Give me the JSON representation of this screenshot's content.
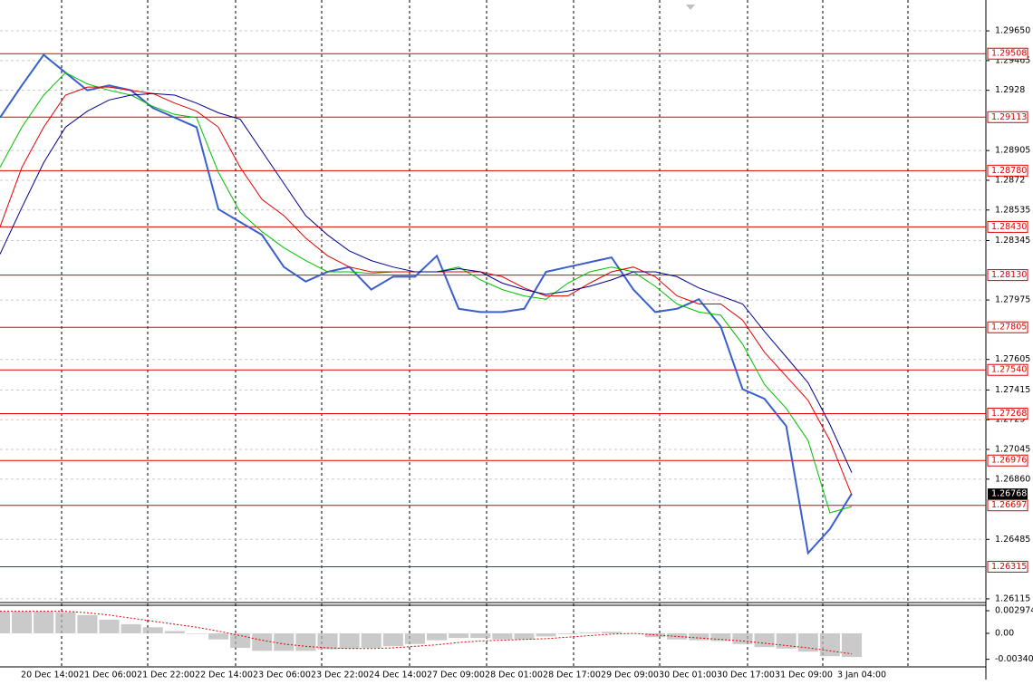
{
  "chart_data": [
    {
      "type": "line",
      "ylim": [
        1.26092,
        1.29842
      ],
      "yticks": [
        {
          "value": 1.2965,
          "label": "1.29650"
        },
        1.29465,
        1.2928,
        1.28905,
        1.2872,
        1.28535,
        1.28345,
        1.27975,
        1.27605,
        1.27415,
        1.2723,
        1.27045,
        {
          "value": 1.2686,
          "label": "1.26860"
        },
        1.26485,
        1.26115
      ],
      "grid": true,
      "time_labels": [
        "20 Dec 14:00",
        "21 Dec 06:00",
        "21 Dec 22:00",
        "22 Dec 14:00",
        "23 Dec 06:00",
        "23 Dec 22:00",
        "24 Dec 14:00",
        "27 Dec 09:00",
        "28 Dec 01:00",
        "28 Dec 17:00",
        "29 Dec 09:00",
        "30 Dec 01:00",
        "30 Dec 17:00",
        "31 Dec 09:00",
        "3 Jan 04:00"
      ],
      "levels": [
        {
          "value": 1.29508,
          "label": "1.29508"
        },
        {
          "value": 1.29113,
          "label": "1.29113"
        },
        {
          "value": 1.2878,
          "label": "1.28780"
        },
        {
          "value": 1.2843,
          "label": "1.28430"
        },
        {
          "value": 1.2813,
          "label": "1.28130"
        },
        {
          "value": 1.27805,
          "label": "1.27805"
        },
        {
          "value": 1.2754,
          "label": "1.27540"
        },
        {
          "value": 1.27268,
          "label": "1.27268"
        },
        {
          "value": 1.26976,
          "label": "1.26976"
        },
        {
          "value": 1.26697,
          "label": "1.26697"
        },
        {
          "value": 1.26315,
          "label": "1.26315"
        }
      ],
      "level_color": "#e00000",
      "last_price": 1.26768,
      "series": [
        {
          "color": "#3a5fcd",
          "values": [
            1.2911,
            1.2931,
            1.295,
            1.2939,
            1.2928,
            1.2931,
            1.2928,
            1.2917,
            1.2911,
            1.2905,
            1.2854,
            1.2846,
            1.2838,
            1.2818,
            1.2809,
            1.2815,
            1.2818,
            1.2804,
            1.2812,
            1.2812,
            1.2825,
            1.2792,
            1.279,
            1.279,
            1.2792,
            1.2815,
            1.2818,
            1.2821,
            1.2824,
            1.2804,
            1.279,
            1.2792,
            1.2798,
            1.2781,
            1.2742,
            1.2736,
            1.2719,
            1.264,
            1.2655,
            1.2677
          ]
        },
        {
          "color": "#00c000",
          "values": [
            1.288,
            1.2905,
            1.2925,
            1.2939,
            1.2932,
            1.2928,
            1.2925,
            1.2918,
            1.2913,
            1.2911,
            1.2877,
            1.2852,
            1.284,
            1.283,
            1.2822,
            1.2815,
            1.2815,
            1.2814,
            1.2815,
            1.2815,
            1.2815,
            1.2818,
            1.281,
            1.2804,
            1.28,
            1.2798,
            1.2808,
            1.2815,
            1.2818,
            1.2815,
            1.2806,
            1.2795,
            1.279,
            1.2788,
            1.277,
            1.2745,
            1.273,
            1.271,
            1.2665,
            1.2669
          ]
        },
        {
          "color": "#e00000",
          "values": [
            1.2843,
            1.288,
            1.2905,
            1.2925,
            1.293,
            1.293,
            1.2928,
            1.2926,
            1.292,
            1.2915,
            1.2905,
            1.288,
            1.286,
            1.285,
            1.2836,
            1.2825,
            1.2818,
            1.2815,
            1.2815,
            1.2815,
            1.2815,
            1.2815,
            1.2815,
            1.2812,
            1.2805,
            1.28,
            1.28,
            1.2808,
            1.2815,
            1.2818,
            1.2812,
            1.28,
            1.2795,
            1.2795,
            1.2785,
            1.2765,
            1.275,
            1.2735,
            1.271,
            1.2676
          ]
        },
        {
          "color": "#00008b",
          "values": [
            1.2826,
            1.2855,
            1.2883,
            1.2905,
            1.2915,
            1.2922,
            1.2925,
            1.2926,
            1.2925,
            1.292,
            1.2914,
            1.291,
            1.289,
            1.287,
            1.285,
            1.2838,
            1.2828,
            1.2822,
            1.2818,
            1.2815,
            1.2815,
            1.2817,
            1.2815,
            1.2808,
            1.2804,
            1.2801,
            1.2803,
            1.2806,
            1.281,
            1.2815,
            1.2815,
            1.2812,
            1.2805,
            1.28,
            1.2795,
            1.2778,
            1.2762,
            1.2746,
            1.272,
            1.269
          ]
        }
      ]
    },
    {
      "type": "bar",
      "ylim": [
        -0.00583,
        0.00369
      ],
      "yticks": [
        0.002974,
        {
          "value": 0,
          "label": "0.00"
        },
        -0.003405
      ],
      "color": "#b4b4b4",
      "values": [
        0.0029,
        0.0029,
        0.0029,
        0.0028,
        0.0024,
        0.0018,
        0.0012,
        0.0008,
        0.0003,
        0,
        -0.0008,
        -0.0019,
        -0.0023,
        -0.0023,
        -0.0023,
        -0.0021,
        -0.002,
        -0.0019,
        -0.0017,
        -0.0014,
        -0.0009,
        -0.0006,
        -0.0006,
        -0.0008,
        -0.0008,
        -0.0004,
        -0.0001,
        0.0001,
        0.0002,
        0,
        -0.0005,
        -0.0008,
        -0.0009,
        -0.001,
        -0.0014,
        -0.0018,
        -0.002,
        -0.0024,
        -0.003,
        -0.0031
      ],
      "signal": {
        "color": "#e00000",
        "values": [
          0.0029,
          0.0029,
          0.0029,
          0.0029,
          0.0027,
          0.0024,
          0.002,
          0.0016,
          0.0012,
          0.0008,
          0.0003,
          -0.0003,
          -0.0009,
          -0.0014,
          -0.0017,
          -0.0019,
          -0.002,
          -0.002,
          -0.0019,
          -0.0017,
          -0.0015,
          -0.0012,
          -0.001,
          -0.0009,
          -0.0008,
          -0.0007,
          -0.0005,
          -0.0003,
          -0.0001,
          0,
          -0.0002,
          -0.0004,
          -0.0006,
          -0.0008,
          -0.001,
          -0.0013,
          -0.0016,
          -0.0019,
          -0.0023,
          -0.0027
        ]
      }
    }
  ]
}
